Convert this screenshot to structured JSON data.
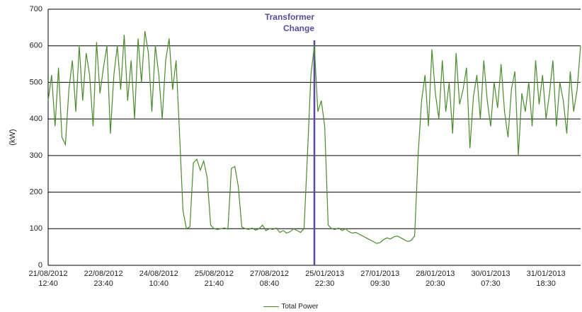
{
  "chart_data": {
    "type": "line",
    "ylabel": "(kW)",
    "annotation": "Transformer\nChange",
    "ylim": [
      0,
      700
    ],
    "yticks": [
      0,
      100,
      200,
      300,
      400,
      500,
      600,
      700
    ],
    "grid": true,
    "legend": "bottom",
    "categories": [
      "21/08/2012\n12:40",
      null,
      null,
      null,
      null,
      null,
      null,
      null,
      null,
      null,
      null,
      null,
      null,
      null,
      null,
      null,
      "22/08/2012\n23:40",
      null,
      null,
      null,
      null,
      null,
      null,
      null,
      null,
      null,
      null,
      null,
      null,
      null,
      null,
      null,
      "24/08/2012\n10:40",
      null,
      null,
      null,
      null,
      null,
      null,
      null,
      null,
      null,
      null,
      null,
      null,
      null,
      null,
      null,
      "25/08/2012\n21:40",
      null,
      null,
      null,
      null,
      null,
      null,
      null,
      null,
      null,
      null,
      null,
      null,
      null,
      null,
      null,
      "27/08/2012\n08:40",
      null,
      null,
      null,
      null,
      null,
      null,
      null,
      null,
      null,
      null,
      null,
      null,
      null,
      null,
      null,
      "25/01/2013\n22:30",
      null,
      null,
      null,
      null,
      null,
      null,
      null,
      null,
      null,
      null,
      null,
      null,
      null,
      null,
      null,
      "27/01/2013\n09:30",
      null,
      null,
      null,
      null,
      null,
      null,
      null,
      null,
      null,
      null,
      null,
      null,
      null,
      null,
      null,
      "28/01/2013\n20:30",
      null,
      null,
      null,
      null,
      null,
      null,
      null,
      null,
      null,
      null,
      null,
      null,
      null,
      null,
      null,
      "30/01/2013\n07:30",
      null,
      null,
      null,
      null,
      null,
      null,
      null,
      null,
      null,
      null,
      null,
      null,
      null,
      null,
      null,
      "31/01/2013\n18:30",
      null,
      null,
      null,
      null,
      null,
      null,
      null,
      null,
      null,
      null
    ],
    "series": [
      {
        "name": "Total Power",
        "color": "#4a8a2e",
        "values": [
          450,
          520,
          380,
          540,
          350,
          330,
          480,
          560,
          420,
          600,
          450,
          580,
          520,
          380,
          610,
          470,
          540,
          600,
          360,
          520,
          600,
          480,
          630,
          450,
          560,
          400,
          620,
          500,
          640,
          580,
          420,
          600,
          520,
          400,
          560,
          620,
          480,
          560,
          360,
          150,
          100,
          105,
          280,
          290,
          260,
          285,
          240,
          110,
          100,
          98,
          100,
          102,
          99,
          265,
          270,
          215,
          105,
          100,
          98,
          102,
          96,
          100,
          110,
          95,
          100,
          98,
          102,
          90,
          95,
          88,
          92,
          100,
          95,
          90,
          100,
          300,
          520,
          600,
          420,
          450,
          380,
          110,
          100,
          98,
          102,
          95,
          100,
          92,
          88,
          90,
          85,
          80,
          75,
          70,
          65,
          60,
          62,
          70,
          75,
          72,
          78,
          80,
          75,
          70,
          65,
          68,
          80,
          300,
          450,
          520,
          380,
          590,
          470,
          400,
          560,
          420,
          500,
          360,
          580,
          440,
          480,
          540,
          320,
          460,
          520,
          400,
          560,
          450,
          380,
          500,
          430,
          550,
          420,
          350,
          480,
          530,
          300,
          470,
          420,
          500,
          380,
          560,
          440,
          520,
          400,
          470,
          560,
          380,
          500,
          450,
          360,
          530,
          420,
          480,
          600
        ]
      }
    ]
  }
}
